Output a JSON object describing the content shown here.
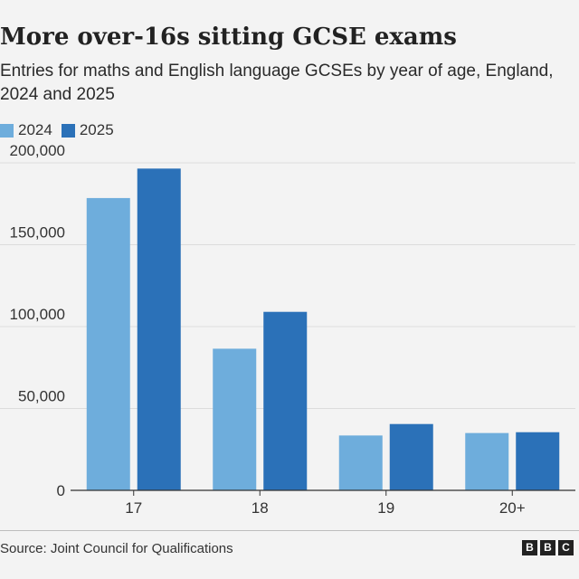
{
  "header": {
    "title": "More over-16s sitting GCSE exams",
    "subtitle": "Entries for maths and English language GCSEs by year of age, England, 2024 and 2025"
  },
  "legend": [
    {
      "label": "2024",
      "color": "#6eaddc"
    },
    {
      "label": "2025",
      "color": "#2b71b8"
    }
  ],
  "chart_data": {
    "type": "bar",
    "title": "More over-16s sitting GCSE exams",
    "subtitle": "Entries for maths and English language GCSEs by year of age, England, 2024 and 2025",
    "xlabel": "",
    "ylabel": "",
    "categories": [
      "17",
      "18",
      "19",
      "20+"
    ],
    "series": [
      {
        "name": "2024",
        "color": "#6eaddc",
        "values": [
          178500,
          86500,
          33500,
          35000
        ]
      },
      {
        "name": "2025",
        "color": "#2b71b8",
        "values": [
          196500,
          109000,
          40500,
          35500
        ]
      }
    ],
    "ylim": [
      0,
      200000
    ],
    "yticks": [
      0,
      50000,
      100000,
      150000,
      200000
    ],
    "ytick_labels": [
      "0",
      "50,000",
      "100,000",
      "150,000",
      "200,000"
    ],
    "grid": true,
    "legend_position": "top-left"
  },
  "footer": {
    "source": "Source: Joint Council for Qualifications",
    "logo_letters": [
      "B",
      "B",
      "C"
    ]
  }
}
